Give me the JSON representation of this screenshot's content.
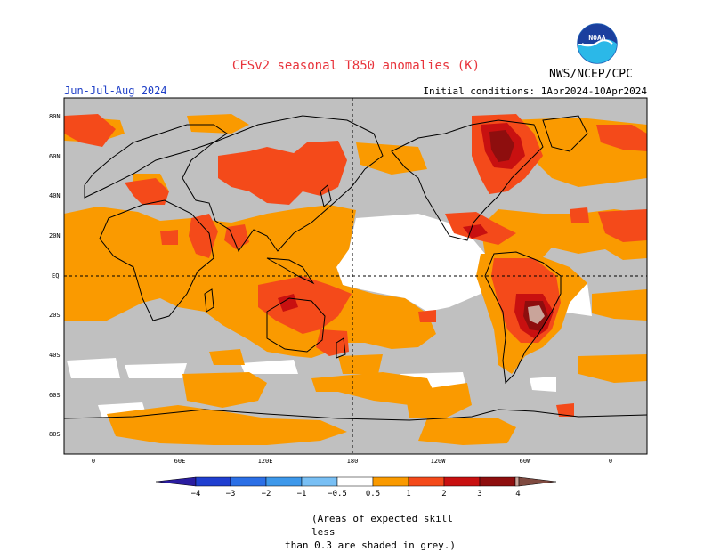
{
  "header": {
    "title": "CFSv2 seasonal T850 anomalies (K)",
    "season": "Jun-Jul-Aug 2024",
    "initial_conditions": "Initial conditions: 1Apr2024-10Apr2024",
    "agency": "NWS/NCEP/CPC",
    "logo_text": "NOAA"
  },
  "map": {
    "lat_labels": [
      "80N",
      "60N",
      "40N",
      "20N",
      "EQ",
      "20S",
      "40S",
      "60S",
      "80S"
    ],
    "lon_labels": [
      "0",
      "60E",
      "120E",
      "180",
      "120W",
      "60W",
      "0"
    ]
  },
  "colorbar": {
    "labels": [
      "−4",
      "−3",
      "−2",
      "−1",
      "−0.5",
      "0.5",
      "1",
      "2",
      "3",
      "4"
    ],
    "colors": [
      "#2a1ca0",
      "#1f3fd0",
      "#2b6fe6",
      "#3d98ea",
      "#78bff4",
      "#ffffff",
      "#fa9a00",
      "#f44a1a",
      "#c81010",
      "#8e0e0e",
      "#c9a49a",
      "#7f4a40"
    ]
  },
  "footnote": {
    "line1": "(Areas of expected skill less",
    "line2": "than 0.3 are shaded in grey.)"
  },
  "palette": {
    "grey": "#c0c0c0",
    "orange": "#fa9a00",
    "red_orange": "#f44a1a",
    "dark_red": "#c81010",
    "maroon": "#8e0e0e",
    "rose": "#c9a49a"
  }
}
